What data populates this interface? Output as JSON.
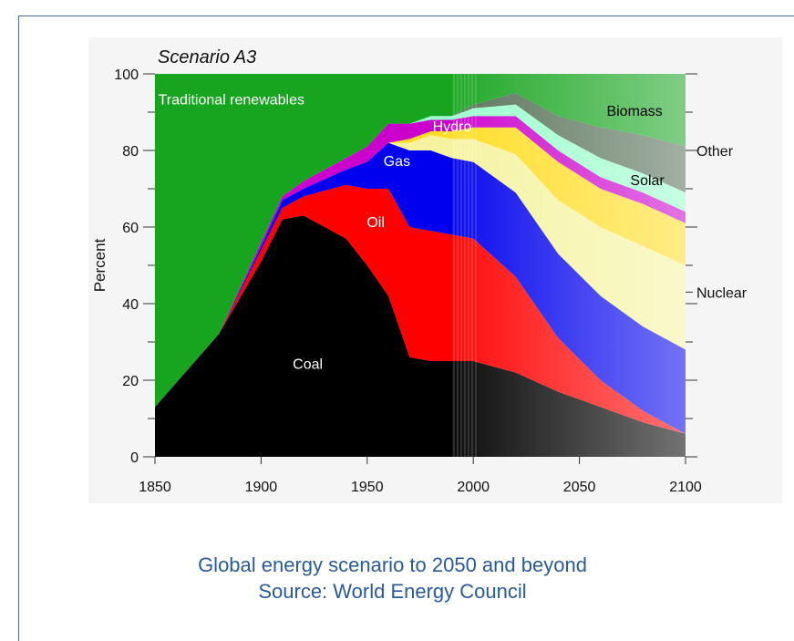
{
  "caption": {
    "line1": "Global energy scenario to 2050 and beyond",
    "line2": "Source: World Energy Council"
  },
  "chart_data": {
    "type": "area",
    "title": "Scenario A3",
    "xlabel": "",
    "ylabel": "Percent",
    "xlim": [
      1850,
      2100
    ],
    "ylim": [
      0,
      100
    ],
    "x_ticks": [
      1850,
      1900,
      1950,
      2000,
      2050,
      2100
    ],
    "y_ticks": [
      0,
      20,
      40,
      60,
      80,
      100
    ],
    "stacked": true,
    "projection_start": 1990,
    "x": [
      1850,
      1880,
      1900,
      1910,
      1920,
      1940,
      1950,
      1960,
      1970,
      1980,
      1990,
      2000,
      2020,
      2040,
      2060,
      2080,
      2100
    ],
    "series": [
      {
        "name": "Coal",
        "color": "#000000",
        "values": [
          13,
          32,
          51,
          62,
          63,
          57,
          50,
          42,
          26,
          25,
          25,
          25,
          22,
          17,
          13,
          9,
          6
        ]
      },
      {
        "name": "Oil",
        "color": "#ff0000",
        "values": [
          0,
          0,
          3,
          3,
          5,
          14,
          20,
          28,
          34,
          34,
          33,
          32,
          25,
          14,
          7,
          3,
          0
        ]
      },
      {
        "name": "Gas",
        "color": "#0000ee",
        "values": [
          0,
          0,
          1,
          2,
          2,
          4,
          7,
          12,
          20,
          21,
          20,
          20,
          22,
          22,
          22,
          22,
          22
        ]
      },
      {
        "name": "Nuclear",
        "color": "#f5f3a0",
        "values": [
          0,
          0,
          0,
          0,
          0,
          0,
          0,
          0,
          2,
          4,
          5,
          6,
          10,
          14,
          18,
          21,
          22
        ]
      },
      {
        "name": "Solar",
        "color": "#ffdd22",
        "values": [
          0,
          0,
          0,
          0,
          0,
          0,
          0,
          0,
          1,
          1,
          2,
          3,
          7,
          10,
          10,
          11,
          11
        ]
      },
      {
        "name": "Hydro",
        "color": "#cc00cc",
        "values": [
          0,
          0,
          1,
          1,
          2,
          3,
          4,
          5,
          4,
          3,
          3,
          3,
          3,
          3,
          3,
          3,
          3
        ]
      },
      {
        "name": "Other",
        "color": "#99ffcc",
        "values": [
          0,
          0,
          0,
          0,
          0,
          0,
          0,
          0,
          0,
          1,
          1,
          2,
          3,
          4,
          5,
          5,
          5
        ]
      },
      {
        "name": "Biomass",
        "color": "#556f55",
        "values": [
          0,
          0,
          0,
          0,
          0,
          0,
          0,
          0,
          0,
          0,
          0,
          1,
          3,
          5,
          8,
          10,
          12
        ]
      },
      {
        "name": "Traditional renewables",
        "color": "#17a51f",
        "values": [
          87,
          68,
          44,
          32,
          28,
          22,
          19,
          13,
          13,
          12,
          11,
          8,
          5,
          11,
          14,
          16,
          19
        ]
      }
    ],
    "labels": [
      {
        "text": "Traditional renewables",
        "x": 1886,
        "y": 92,
        "color": "#ffffff",
        "anchor": "middle"
      },
      {
        "text": "Biomass",
        "x": 2076,
        "y": 89,
        "color": "#000000",
        "anchor": "middle"
      },
      {
        "text": "Hydro",
        "x": 1990,
        "y": 85,
        "color": "#ffffff",
        "anchor": "middle"
      },
      {
        "text": "Gas",
        "x": 1964,
        "y": 76,
        "color": "#ffffff",
        "anchor": "middle"
      },
      {
        "text": "Solar",
        "x": 2082,
        "y": 71,
        "color": "#000000",
        "anchor": "middle"
      },
      {
        "text": "Oil",
        "x": 1954,
        "y": 60,
        "color": "#ffffff",
        "anchor": "middle"
      },
      {
        "text": "Coal",
        "x": 1922,
        "y": 23,
        "color": "#ffffff",
        "anchor": "middle"
      }
    ],
    "side_labels": [
      {
        "text": "Other",
        "y": 80
      },
      {
        "text": "Nuclear",
        "y": 43
      }
    ]
  }
}
